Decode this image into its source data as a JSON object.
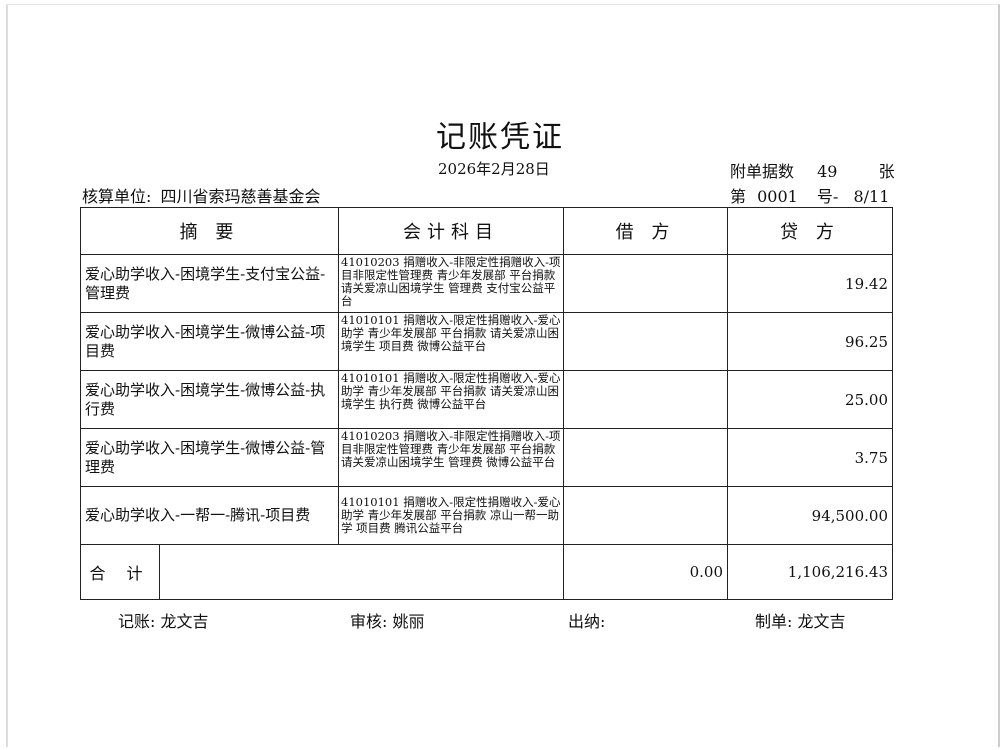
{
  "title": "记账凭证",
  "date": "2026年2月28日",
  "attachments": {
    "label": "附单据数",
    "count": "49",
    "unit": "张"
  },
  "unit": {
    "label": "核算单位:",
    "name": "四川省索玛慈善基金会"
  },
  "voucher": {
    "prefix": "第",
    "number": "0001",
    "suffix": "号-",
    "page": "8/11"
  },
  "columns": [
    "摘 要",
    "会计科目",
    "借 方",
    "贷 方"
  ],
  "rows": [
    {
      "summary": "爱心助学收入-困境学生-支付宝公益-管理费",
      "account": "41010203 捐赠收入-非限定性捐赠收入-项目非限定性管理费 青少年发展部 平台捐款 请关爱凉山困境学生 管理费 支付宝公益平台",
      "debit": "",
      "credit": "19.42"
    },
    {
      "summary": "爱心助学收入-困境学生-微博公益-项目费",
      "account": "41010101 捐赠收入-限定性捐赠收入-爱心助学 青少年发展部 平台捐款 请关爱凉山困境学生 项目费 微博公益平台",
      "debit": "",
      "credit": "96.25"
    },
    {
      "summary": "爱心助学收入-困境学生-微博公益-执行费",
      "account": "41010101 捐赠收入-限定性捐赠收入-爱心助学 青少年发展部 平台捐款 请关爱凉山困境学生 执行费 微博公益平台",
      "debit": "",
      "credit": "25.00"
    },
    {
      "summary": "爱心助学收入-困境学生-微博公益-管理费",
      "account": "41010203 捐赠收入-非限定性捐赠收入-项目非限定性管理费 青少年发展部 平台捐款 请关爱凉山困境学生 管理费 微博公益平台",
      "debit": "",
      "credit": "3.75"
    },
    {
      "summary": "爱心助学收入-一帮一-腾讯-项目费",
      "account": "41010101 捐赠收入-限定性捐赠收入-爱心助学 青少年发展部 平台捐款 凉山一帮一助学 项目费 腾讯公益平台",
      "debit": "",
      "credit": "94,500.00"
    }
  ],
  "total": {
    "label": "合 计",
    "debit": "0.00",
    "credit": "1,106,216.43"
  },
  "signatures": {
    "bookkeeper": "记账: 龙文吉",
    "reviewer": "审核: 姚丽",
    "cashier": "出纳:",
    "preparer": "制单: 龙文吉"
  }
}
